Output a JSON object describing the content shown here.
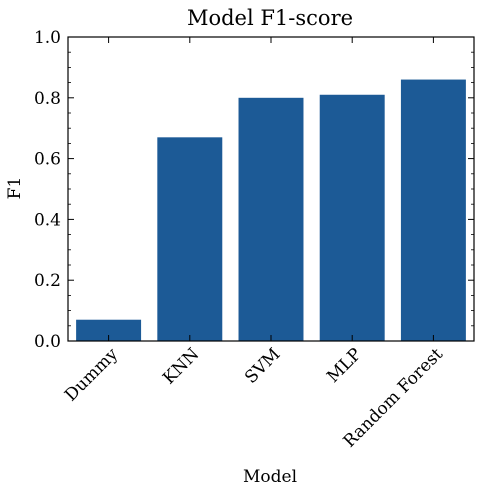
{
  "chart_data": {
    "type": "bar",
    "title": "Model F1-score",
    "xlabel": "Model",
    "ylabel": "F1",
    "categories": [
      "Dummy",
      "KNN",
      "SVM",
      "MLP",
      "Random Forest"
    ],
    "values": [
      0.07,
      0.67,
      0.8,
      0.81,
      0.86
    ],
    "ylim": [
      0,
      1.0
    ],
    "yticks": [
      0.0,
      0.2,
      0.4,
      0.6,
      0.8,
      1.0
    ],
    "ytick_labels": [
      "0.0",
      "0.2",
      "0.4",
      "0.6",
      "0.8",
      "1.0"
    ],
    "grid": false,
    "bar_color": "#1c5a96"
  }
}
